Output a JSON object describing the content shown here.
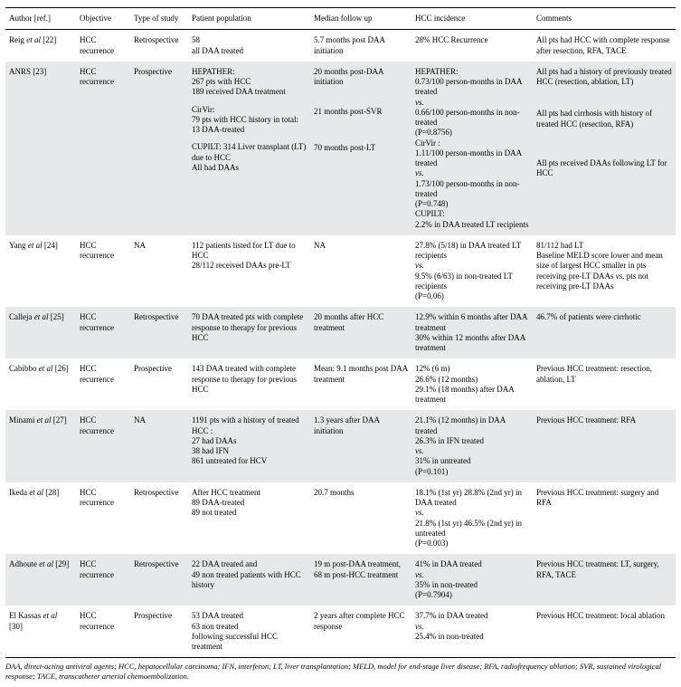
{
  "table": {
    "col_widths": [
      "78px",
      "60px",
      "64px",
      "135px",
      "112px",
      "134px",
      "158px"
    ],
    "headers": [
      "Author [ref.]",
      "Objective",
      "Type of study",
      "Patient population",
      "Median follow up",
      "HCC incidence",
      "Comments"
    ],
    "rows": [
      {
        "shaded": false,
        "author_html": "Reig <span class=\"it\">et al</span> [22]",
        "objective": "HCC recurrence",
        "type": "Retrospective",
        "population_html": "58<br>all DAA treated",
        "followup_html": "5.7 months post DAA initiation",
        "incidence_html": "28% HCC Recurrence",
        "comments_html": "All pts had HCC with complete response after resection, RFA, TACE"
      },
      {
        "shaded": true,
        "author_html": "ANRS [23]",
        "objective": "HCC recurrence",
        "type": "Prospective",
        "population_html": "<div class=\"cellblock\">HEPATHER:<br>267 pts with HCC<br>189 received DAA treatment</div><div class=\"cellblock\">CirVir:<br>79 pts with HCC history in total:<br>13 DAA-treated</div><div class=\"cellblock\">CUPILT: 314 Liver transplant (LT) due to HCC<br>All had DAAs</div>",
        "followup_html": "<div class=\"cellblock\">20 months post-DAA initiation</div><div class=\"cellblock\" style=\"margin-top:22px\">21 months post-SVR</div><div class=\"cellblock\" style=\"margin-top:28px\">70 months post-LT</div>",
        "incidence_html": "HEPATHER:<br>0.73/100 person-months in DAA treated<br><span class=\"it\">vs.</span><br>0.66/100 person-months in non-treated<br>(P=0.8756)<br>CirVir :<br>1.11/100 person-months in DAA treated<br><span class=\"it\">vs.</span><br>1.73/100 person-months in non-treated<br>(P=0.748)<br>CUPILT:<br>2.2% in DAA treated LT recipients",
        "comments_html": "<div class=\"cellblock\">All pts had a history of previously treated HCC (resection, ablation, LT)</div><div class=\"cellblock\" style=\"margin-top:24px\">All pts had cirrhosis with history of treated HCC (resection, RFA)</div><div class=\"cellblock\" style=\"margin-top:32px\">All pts received DAAs following LT for HCC</div>"
      },
      {
        "shaded": false,
        "author_html": "Yang <span class=\"it\">et al</span> [24]",
        "objective": "HCC recurrence",
        "type": "NA",
        "population_html": "112 patients listed for LT due to HCC<br>28/112 received DAAs pre-LT",
        "followup_html": "NA",
        "incidence_html": "27.8% (5/18) in DAA treated LT recipients<br><span class=\"it\">vs.</span><br>9.5% (6/63) in non-treated LT recipients<br>(P=0.06)",
        "comments_html": "81/112 had LT<br>Baseline MELD score lower and mean size of largest HCC smaller in pts receiving pre-LT DAAs <span class=\"it\">vs.</span> pts not receiving pre-LT DAAs"
      },
      {
        "shaded": true,
        "author_html": "Calleja <span class=\"it\">et al</span> [25]",
        "objective": "HCC recurrence",
        "type": "Retrospective",
        "population_html": "70 DAA treated pts with complete response to therapy for previous HCC",
        "followup_html": "20 months after HCC treatment",
        "incidence_html": "12.9% within 6 months after DAA treatment<br>30% within 12 months after DAA treatment",
        "comments_html": "46.7% of patients were cirrhotic"
      },
      {
        "shaded": false,
        "author_html": "Cabibbo <span class=\"it\">et al</span> [26]",
        "objective": "HCC recurrence",
        "type": "Prospective",
        "population_html": "143 DAA treated with complete response to therapy for previous HCC",
        "followup_html": "Mean: 9.1 months post DAA treatment",
        "incidence_html": "12% (6 m)<br>26.6% (12 months)<br>29.1% (18 months) after DAA treatment",
        "comments_html": "Previous HCC treatment: resection, ablation, LT"
      },
      {
        "shaded": true,
        "author_html": "Minami <span class=\"it\">et al</span> [27]",
        "objective": "HCC recurrence",
        "type": "NA",
        "population_html": "1191 pts with a history of treated HCC :<br>27 had DAAs<br>38 had IFN<br>861 untreated for HCV",
        "followup_html": "1.3 years after DAA initiation",
        "incidence_html": "21.1% (12 months) in DAA treated<br>26.3% in IFN treated<br><span class=\"it\">vs.</span><br>31% in untreated<br>(P=0.101)",
        "comments_html": "Previous HCC treatment: RFA"
      },
      {
        "shaded": false,
        "author_html": "Ikeda <span class=\"it\">et al</span> [28]",
        "objective": "HCC recurrence",
        "type": "Retrospective",
        "population_html": "After HCC treatment<br>89 DAA-treated<br>89 not treated",
        "followup_html": "20.7 months",
        "incidence_html": "18.1% (1st yr) 28.8% (2nd yr) in DAA treated<br><span class=\"it\">vs.</span><br>21.8% (1st yr) 46.5% (2nd yr) in untreated<br>(P=0.003)",
        "comments_html": "Previous HCC treatment: surgery and RFA"
      },
      {
        "shaded": true,
        "author_html": "Adhoute <span class=\"it\">et al</span> [29]",
        "objective": "HCC recurrence",
        "type": "Retrospective",
        "population_html": "22 DAA treated and<br>49 non treated patients with HCC history",
        "followup_html": "19 m post-DAA treatment,<br>68 m post-HCC treatment",
        "incidence_html": "41% in DAA treated<br><span class=\"it\">vs.</span><br>35% in non-treated<br>(P=0.7904)",
        "comments_html": "Previous HCC treatment: LT, surgery, RFA, TACE"
      },
      {
        "shaded": false,
        "author_html": "El Kassas <span class=\"it\">et al</span> [30]",
        "objective": "HCC recurrence",
        "type": "Prospective",
        "population_html": "53 DAA treated<br>63 non treated<br>following successful HCC treatment",
        "followup_html": "2 years after complete HCC response",
        "incidence_html": "37.7% in DAA treated<br><span class=\"it\">vs.</span><br>25.4% in non-treated",
        "comments_html": "Previous HCC treatment: local ablation"
      }
    ]
  },
  "footnote": "DAA, direct-acting antiviral agents; HCC, hepatocellular carcinoma; IFN, interferon; LT, liver transplantation; MELD, model for end-stage liver disease; RFA, radiofrequency ablation; SVR, sustained virological response; TACE, transcatheter arterial chemoembolization."
}
